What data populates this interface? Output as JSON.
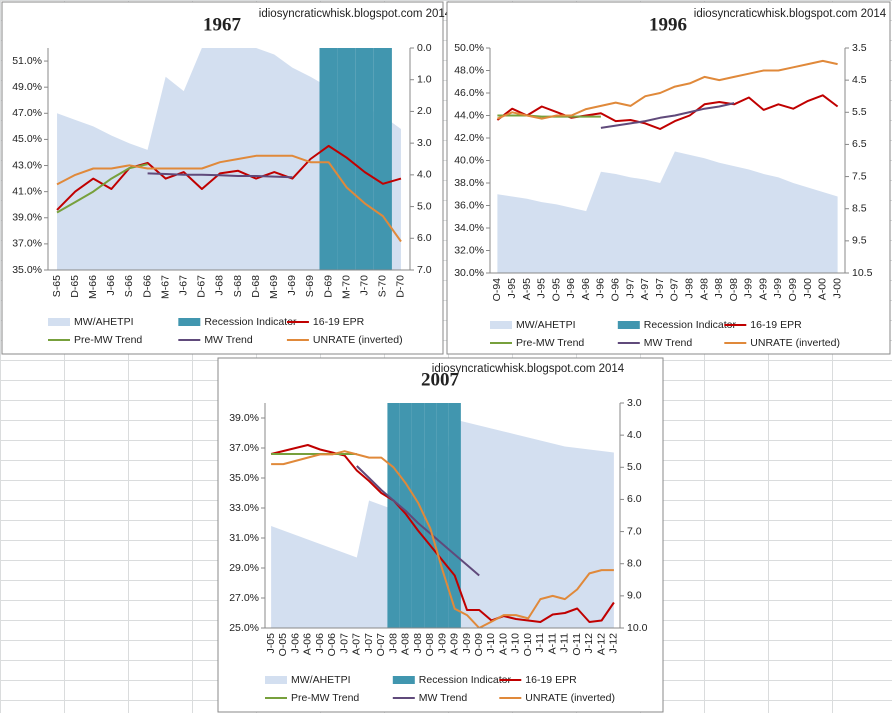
{
  "chart_data": [
    {
      "type": "line",
      "title": "1967",
      "annotation": "idiosyncraticwhisk.blogspot.com 2014",
      "categories": [
        "S-65",
        "D-65",
        "M-66",
        "J-66",
        "S-66",
        "D-66",
        "M-67",
        "J-67",
        "D-67",
        "J-68",
        "S-68",
        "D-68",
        "M-69",
        "J-69",
        "S-69",
        "D-69",
        "M-70",
        "J-70",
        "S-70",
        "D-70"
      ],
      "ylim": [
        35,
        52
      ],
      "yticks": [
        {
          "value": 35,
          "label": "35.0%"
        },
        {
          "value": 37,
          "label": "37.0%"
        },
        {
          "value": 39,
          "label": "39.0%"
        },
        {
          "value": 41,
          "label": "41.0%"
        },
        {
          "value": 43,
          "label": "43.0%"
        },
        {
          "value": 45,
          "label": "45.0%"
        },
        {
          "value": 47,
          "label": "47.0%"
        },
        {
          "value": 49,
          "label": "49.0%"
        },
        {
          "value": 51,
          "label": "51.0%"
        }
      ],
      "y2lim": [
        0,
        7
      ],
      "y2_inverted": true,
      "y2ticks": [
        {
          "value": 0,
          "label": "0.0"
        },
        {
          "value": 1,
          "label": "1.0"
        },
        {
          "value": 2,
          "label": "2.0"
        },
        {
          "value": 3,
          "label": "3.0"
        },
        {
          "value": 4,
          "label": "4.0"
        },
        {
          "value": 5,
          "label": "5.0"
        },
        {
          "value": 6,
          "label": "6.0"
        },
        {
          "value": 7,
          "label": "7.0"
        }
      ],
      "series": [
        {
          "name": "MW/AHETPI",
          "type": "area",
          "color": "#d3dff0",
          "values": [
            47.0,
            46.5,
            46.0,
            45.3,
            44.7,
            44.2,
            49.8,
            48.7,
            52,
            52,
            52,
            52,
            51.5,
            50.5,
            49.8,
            49.0,
            48.3,
            47.5,
            46.8,
            45.8
          ]
        },
        {
          "name": "Recession Indicator",
          "type": "bar",
          "color": "#4196af",
          "values": [
            0,
            0,
            0,
            0,
            0,
            0,
            0,
            0,
            0,
            0,
            0,
            0,
            0,
            0,
            0,
            1,
            1,
            1,
            1,
            0
          ]
        },
        {
          "name": "16-19 EPR",
          "type": "line",
          "color": "#c00000",
          "values": [
            39.6,
            41.0,
            42.0,
            41.2,
            42.8,
            43.2,
            42.0,
            42.5,
            41.2,
            42.4,
            42.6,
            42.0,
            42.5,
            42.0,
            43.5,
            44.5,
            43.6,
            42.5,
            41.6,
            42.0
          ]
        },
        {
          "name": "Pre-MW Trend",
          "type": "line",
          "color": "#77a03c",
          "values": [
            39.4,
            40.2,
            41.0,
            42.0,
            42.8,
            43.1,
            null,
            null,
            null,
            null,
            null,
            null,
            null,
            null,
            null,
            null,
            null,
            null,
            null,
            null
          ]
        },
        {
          "name": "MW Trend",
          "type": "line",
          "color": "#604a7b",
          "values": [
            null,
            null,
            null,
            null,
            null,
            42.4,
            42.35,
            42.3,
            42.3,
            42.25,
            42.2,
            42.2,
            42.15,
            42.1,
            null,
            null,
            null,
            null,
            null,
            null
          ]
        },
        {
          "name": "UNRATE (inverted)",
          "type": "line",
          "color": "#e0893a",
          "axis": "y2",
          "values": [
            4.3,
            4.0,
            3.8,
            3.8,
            3.7,
            3.8,
            3.8,
            3.8,
            3.8,
            3.6,
            3.5,
            3.4,
            3.4,
            3.4,
            3.6,
            3.6,
            4.4,
            4.9,
            5.3,
            6.1
          ]
        }
      ]
    },
    {
      "type": "line",
      "title": "1996",
      "annotation": "idiosyncraticwhisk.blogspot.com 2014",
      "categories": [
        "O-94",
        "J-95",
        "A-95",
        "J-95",
        "O-95",
        "J-96",
        "A-96",
        "J-96",
        "O-96",
        "J-97",
        "A-97",
        "J-97",
        "O-97",
        "J-98",
        "A-98",
        "J-98",
        "O-98",
        "J-99",
        "A-99",
        "J-99",
        "O-99",
        "J-00",
        "A-00",
        "J-00"
      ],
      "ylim": [
        30,
        50
      ],
      "yticks": [
        {
          "value": 30,
          "label": "30.0%"
        },
        {
          "value": 32,
          "label": "32.0%"
        },
        {
          "value": 34,
          "label": "34.0%"
        },
        {
          "value": 36,
          "label": "36.0%"
        },
        {
          "value": 38,
          "label": "38.0%"
        },
        {
          "value": 40,
          "label": "40.0%"
        },
        {
          "value": 42,
          "label": "42.0%"
        },
        {
          "value": 44,
          "label": "44.0%"
        },
        {
          "value": 46,
          "label": "46.0%"
        },
        {
          "value": 48,
          "label": "48.0%"
        },
        {
          "value": 50,
          "label": "50.0%"
        }
      ],
      "y2lim": [
        3.5,
        10.5
      ],
      "y2_inverted": true,
      "y2ticks": [
        3.5,
        4.5,
        5.5,
        6.5,
        7.5,
        8.5,
        9.5,
        10.5
      ],
      "series": [
        {
          "name": "MW/AHETPI",
          "type": "area",
          "color": "#d3dff0",
          "values": [
            37.0,
            36.8,
            36.6,
            36.3,
            36.1,
            35.8,
            35.5,
            39.0,
            38.8,
            38.5,
            38.3,
            38.0,
            40.8,
            40.5,
            40.2,
            39.8,
            39.5,
            39.2,
            38.8,
            38.5,
            38.0,
            37.6,
            37.2,
            36.8
          ]
        },
        {
          "name": "Recession Indicator",
          "type": "bar",
          "color": "#4196af",
          "values": [
            0,
            0,
            0,
            0,
            0,
            0,
            0,
            0,
            0,
            0,
            0,
            0,
            0,
            0,
            0,
            0,
            0,
            0,
            0,
            0,
            0,
            0,
            0,
            0
          ]
        },
        {
          "name": "16-19 EPR",
          "type": "line",
          "color": "#c00000",
          "values": [
            43.6,
            44.6,
            44.0,
            44.8,
            44.3,
            43.8,
            44.0,
            44.2,
            43.5,
            43.6,
            43.3,
            42.8,
            43.5,
            44.0,
            45.0,
            45.2,
            45.0,
            45.6,
            44.5,
            45.0,
            44.6,
            45.3,
            45.8,
            44.8
          ]
        },
        {
          "name": "Pre-MW Trend",
          "type": "line",
          "color": "#77a03c",
          "values": [
            44.0,
            44.0,
            44.0,
            43.9,
            43.9,
            43.9,
            43.9,
            43.9,
            null,
            null,
            null,
            null,
            null,
            null,
            null,
            null,
            null,
            null,
            null,
            null,
            null,
            null,
            null,
            null
          ]
        },
        {
          "name": "MW Trend",
          "type": "line",
          "color": "#604a7b",
          "values": [
            null,
            null,
            null,
            null,
            null,
            null,
            null,
            42.9,
            43.1,
            43.3,
            43.5,
            43.8,
            44.0,
            44.3,
            44.6,
            44.8,
            45.1,
            null,
            null,
            null,
            null,
            null,
            null,
            null
          ]
        },
        {
          "name": "UNRATE (inverted)",
          "type": "line",
          "color": "#e0893a",
          "axis": "y2",
          "values": [
            5.7,
            5.5,
            5.6,
            5.7,
            5.6,
            5.6,
            5.4,
            5.3,
            5.2,
            5.3,
            5.0,
            4.9,
            4.7,
            4.6,
            4.4,
            4.5,
            4.4,
            4.3,
            4.2,
            4.2,
            4.1,
            4.0,
            3.9,
            4.0
          ]
        }
      ]
    },
    {
      "type": "line",
      "title": "2007",
      "annotation": "idiosyncraticwhisk.blogspot.com 2014",
      "categories": [
        "J-05",
        "O-05",
        "J-06",
        "A-06",
        "J-06",
        "O-06",
        "J-07",
        "A-07",
        "J-07",
        "O-07",
        "J-08",
        "A-08",
        "J-08",
        "O-08",
        "J-09",
        "A-09",
        "J-09",
        "O-09",
        "J-10",
        "A-10",
        "J-10",
        "O-10",
        "J-11",
        "A-11",
        "J-11",
        "O-11",
        "J-12",
        "A-12",
        "J-12"
      ],
      "ylim": [
        25,
        40
      ],
      "yticks": [
        {
          "value": 25,
          "label": "25.0%"
        },
        {
          "value": 27,
          "label": "27.0%"
        },
        {
          "value": 29,
          "label": "29.0%"
        },
        {
          "value": 31,
          "label": "31.0%"
        },
        {
          "value": 33,
          "label": "33.0%"
        },
        {
          "value": 35,
          "label": "35.0%"
        },
        {
          "value": 37,
          "label": "37.0%"
        },
        {
          "value": 39,
          "label": "39.0%"
        }
      ],
      "y2lim": [
        3,
        10
      ],
      "y2_inverted": true,
      "y2ticks": [
        {
          "value": 3,
          "label": "3.0"
        },
        {
          "value": 4,
          "label": "4.0"
        },
        {
          "value": 5,
          "label": "5.0"
        },
        {
          "value": 6,
          "label": "6.0"
        },
        {
          "value": 7,
          "label": "7.0"
        },
        {
          "value": 8,
          "label": "8.0"
        },
        {
          "value": 9,
          "label": "9.0"
        },
        {
          "value": 10,
          "label": "10.0"
        }
      ],
      "series": [
        {
          "name": "MW/AHETPI",
          "type": "area",
          "color": "#d3dff0",
          "values": [
            31.8,
            31.5,
            31.2,
            30.9,
            30.6,
            30.3,
            30.0,
            29.7,
            33.5,
            33.2,
            32.9,
            36.0,
            35.8,
            35.5,
            35.3,
            38.9,
            38.7,
            38.5,
            38.3,
            38.1,
            37.9,
            37.7,
            37.5,
            37.3,
            37.1,
            37.0,
            36.9,
            36.8,
            36.7
          ]
        },
        {
          "name": "Recession Indicator",
          "type": "bar",
          "color": "#4196af",
          "values": [
            0,
            0,
            0,
            0,
            0,
            0,
            0,
            0,
            0,
            0,
            1,
            1,
            1,
            1,
            1,
            1,
            0,
            0,
            0,
            0,
            0,
            0,
            0,
            0,
            0,
            0,
            0,
            0,
            0
          ]
        },
        {
          "name": "16-19 EPR",
          "type": "line",
          "color": "#c00000",
          "values": [
            36.6,
            36.8,
            37.0,
            37.2,
            36.9,
            36.7,
            36.5,
            35.5,
            34.8,
            34.0,
            33.5,
            32.6,
            31.5,
            30.5,
            29.5,
            28.5,
            26.2,
            26.2,
            25.5,
            25.8,
            25.6,
            25.5,
            25.4,
            25.9,
            26.0,
            26.3,
            25.4,
            25.5,
            26.7
          ]
        },
        {
          "name": "Pre-MW Trend",
          "type": "line",
          "color": "#77a03c",
          "values": [
            36.6,
            36.6,
            36.6,
            36.6,
            36.6,
            36.6,
            36.6,
            36.6,
            null,
            null,
            null,
            null,
            null,
            null,
            null,
            null,
            null,
            null,
            null,
            null,
            null,
            null,
            null,
            null,
            null,
            null,
            null,
            null,
            null
          ]
        },
        {
          "name": "MW Trend",
          "type": "line",
          "color": "#604a7b",
          "values": [
            null,
            null,
            null,
            null,
            null,
            null,
            null,
            35.8,
            35.0,
            34.2,
            33.5,
            32.8,
            32.0,
            31.3,
            30.6,
            29.9,
            29.2,
            28.5,
            null,
            null,
            null,
            null,
            null,
            null,
            null,
            null,
            null,
            null,
            null
          ]
        },
        {
          "name": "UNRATE (inverted)",
          "type": "line",
          "color": "#e0893a",
          "axis": "y2",
          "values": [
            4.9,
            4.9,
            4.8,
            4.7,
            4.6,
            4.6,
            4.5,
            4.6,
            4.7,
            4.7,
            5.0,
            5.5,
            6.1,
            6.9,
            8.2,
            9.4,
            9.6,
            10.0,
            9.8,
            9.6,
            9.6,
            9.7,
            9.1,
            9.0,
            9.1,
            8.8,
            8.3,
            8.2,
            8.2
          ]
        }
      ]
    }
  ]
}
